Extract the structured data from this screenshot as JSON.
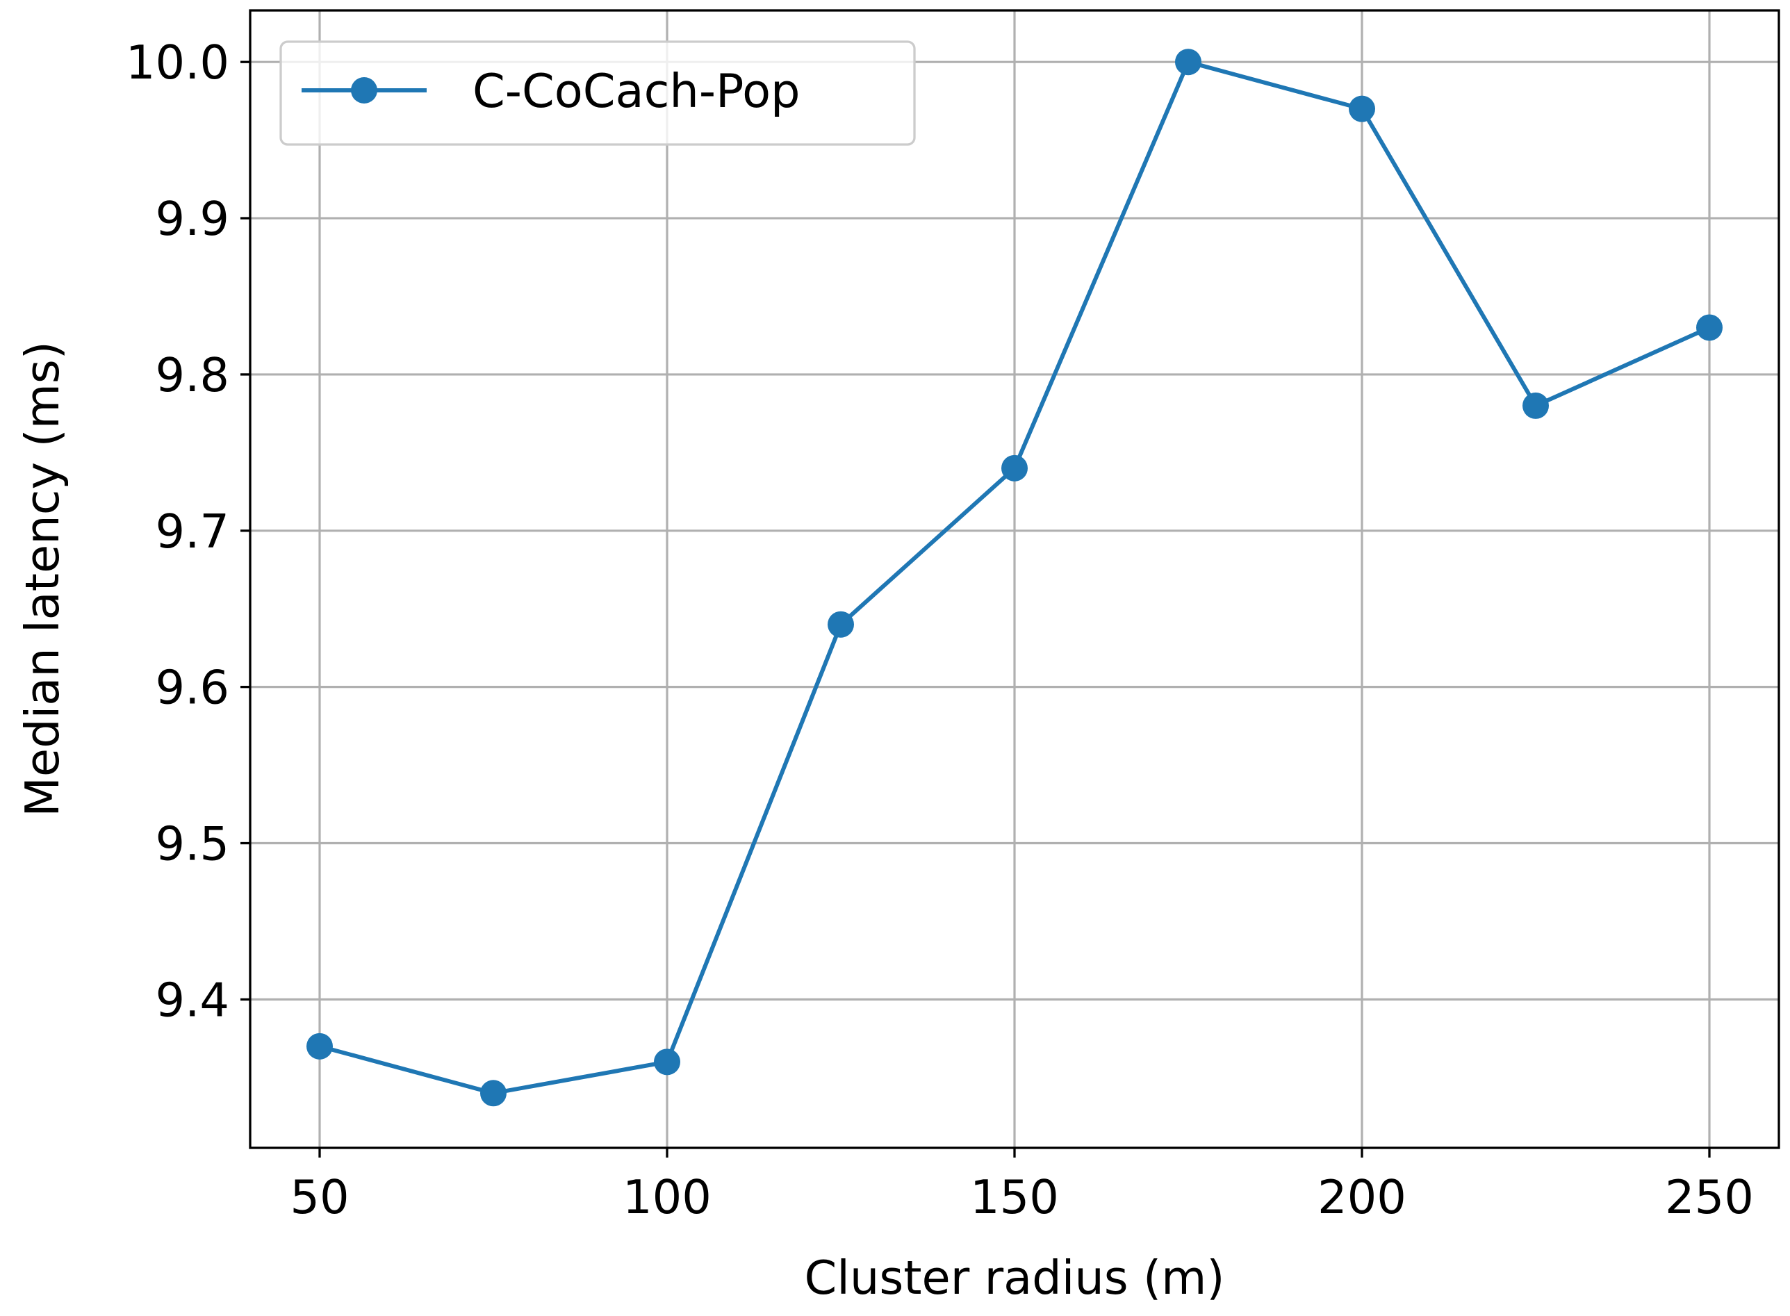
{
  "chart_data": {
    "type": "line",
    "xlabel": "Cluster radius (m)",
    "ylabel": "Median latency (ms)",
    "xlim": [
      40,
      260
    ],
    "ylim": [
      9.305,
      10.033
    ],
    "xticks": [
      50,
      100,
      150,
      200,
      250
    ],
    "xtick_labels": [
      "50",
      "100",
      "150",
      "200",
      "250"
    ],
    "yticks": [
      9.4,
      9.5,
      9.6,
      9.7,
      9.8,
      9.9,
      10.0
    ],
    "ytick_labels": [
      "9.4",
      "9.5",
      "9.6",
      "9.7",
      "9.8",
      "9.9",
      "10.0"
    ],
    "grid": true,
    "legend_position": "top-left",
    "x": [
      50,
      75,
      100,
      125,
      150,
      175,
      200,
      225,
      250
    ],
    "series": [
      {
        "name": "C-CoCach-Pop",
        "color": "#1f77b4",
        "marker": "circle",
        "values": [
          9.37,
          9.34,
          9.36,
          9.64,
          9.74,
          10.0,
          9.97,
          9.78,
          9.83
        ]
      }
    ]
  }
}
